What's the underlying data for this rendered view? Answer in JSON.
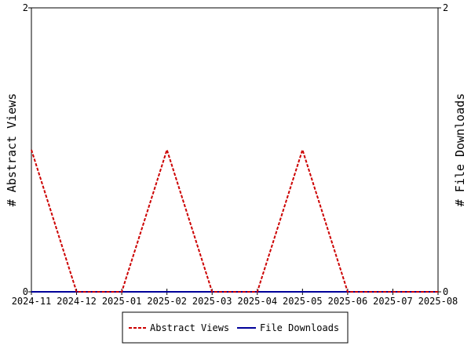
{
  "chart_data": {
    "type": "line",
    "x": [
      "2024-11",
      "2024-12",
      "2025-01",
      "2025-02",
      "2025-03",
      "2025-04",
      "2025-05",
      "2025-06",
      "2025-07",
      "2025-08"
    ],
    "series": [
      {
        "name": "Abstract Views",
        "values": [
          1,
          0,
          0,
          1,
          0,
          0,
          1,
          0,
          0,
          0
        ],
        "color": "#cc0000",
        "style": "dashed",
        "axis": "left"
      },
      {
        "name": "File Downloads",
        "values": [
          0,
          0,
          0,
          0,
          0,
          0,
          0,
          0,
          0,
          0
        ],
        "color": "#000099",
        "style": "solid",
        "axis": "right"
      }
    ],
    "ylabel_left": "# Abstract Views",
    "ylabel_right": "# File Downloads",
    "ylim_left": [
      0,
      2
    ],
    "ylim_right": [
      0,
      2
    ],
    "yticks_left": [
      "0",
      "2"
    ],
    "yticks_right": [
      "0",
      "2"
    ],
    "legend_position": "bottom-center",
    "grid": false
  }
}
